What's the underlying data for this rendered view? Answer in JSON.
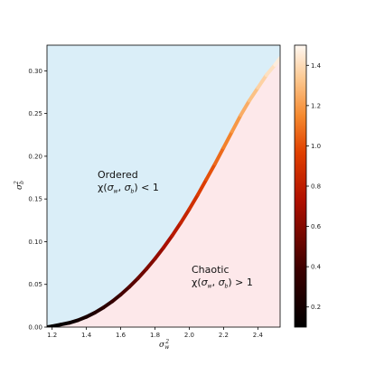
{
  "chart_data": {
    "type": "line",
    "xlabel": "σ_w^2",
    "ylabel": "σ_b^2",
    "xlim": [
      1.17,
      2.53
    ],
    "ylim": [
      0.0,
      0.33
    ],
    "x_ticks": [
      "1.2",
      "1.4",
      "1.6",
      "1.8",
      "2.0",
      "2.2",
      "2.4"
    ],
    "y_ticks": [
      "0.00",
      "0.05",
      "0.10",
      "0.15",
      "0.20",
      "0.25",
      "0.30"
    ],
    "grid": false,
    "region_colors": {
      "ordered": "#daeef8",
      "chaotic": "#fde8ea"
    },
    "annotations": {
      "ordered_title": "Ordered",
      "ordered_formula": "χ(σw, σb) < 1",
      "chaotic_title": "Chaotic",
      "chaotic_formula": "χ(σw, σb) > 1"
    },
    "series": [
      {
        "x": [
          1.17,
          1.2,
          1.25,
          1.3,
          1.35,
          1.4,
          1.45,
          1.5,
          1.55,
          1.6,
          1.65,
          1.7,
          1.75,
          1.8,
          1.85,
          1.9,
          1.95,
          2.0,
          2.05,
          2.1,
          2.15,
          2.2,
          2.25,
          2.3,
          2.35,
          2.4,
          2.45,
          2.5,
          2.53
        ],
        "y": [
          0.0,
          0.001,
          0.003,
          0.005,
          0.008,
          0.012,
          0.017,
          0.023,
          0.03,
          0.038,
          0.047,
          0.057,
          0.068,
          0.08,
          0.093,
          0.107,
          0.122,
          0.138,
          0.155,
          0.173,
          0.191,
          0.21,
          0.229,
          0.248,
          0.265,
          0.28,
          0.295,
          0.307,
          0.315
        ],
        "c": [
          0.1,
          0.11,
          0.13,
          0.15,
          0.18,
          0.21,
          0.25,
          0.29,
          0.34,
          0.39,
          0.44,
          0.5,
          0.56,
          0.62,
          0.68,
          0.74,
          0.8,
          0.86,
          0.92,
          0.98,
          1.04,
          1.1,
          1.16,
          1.22,
          1.28,
          1.34,
          1.39,
          1.44,
          1.48
        ]
      }
    ],
    "colorbar": {
      "range": [
        0.1,
        1.5
      ],
      "ticks": [
        "0.2",
        "0.4",
        "0.6",
        "0.8",
        "1.0",
        "1.2",
        "1.4"
      ],
      "colormap": "gist_heat"
    }
  }
}
